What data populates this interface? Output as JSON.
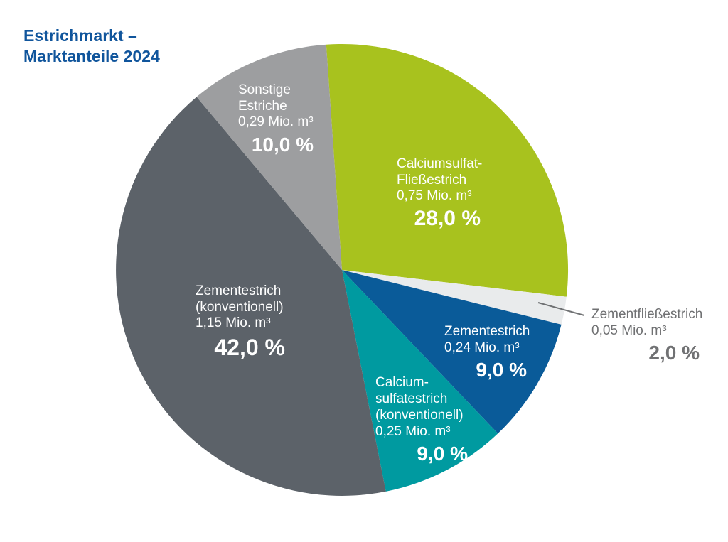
{
  "page": {
    "title_line1": "Estrichmarkt –",
    "title_line2": "Marktanteile 2024",
    "title_color": "#10559c",
    "background": "#ffffff"
  },
  "chart_data": {
    "type": "pie",
    "title": "Estrichmarkt – Marktanteile 2024",
    "unit": "Mio. m³",
    "total_percent": 100,
    "start_angle_deg_from_north": -4,
    "clockwise": true,
    "legend_position": "labels-on-slices",
    "slices": [
      {
        "id": "calciumsulfat-fliessestrich",
        "label": "Calciumsulfat-Fließestrich",
        "label_lines": [
          "Calciumsulfat-",
          "Fließestrich"
        ],
        "volume": "0,75 Mio. m³",
        "volume_value": 0.75,
        "percent": 28.0,
        "percent_label": "28,0 %",
        "color": "#a8c21e",
        "text_color": "#ffffff"
      },
      {
        "id": "zementfliessestrich",
        "label": "Zementfließestrich",
        "label_lines": [
          "Zementfließestrich"
        ],
        "volume": "0,05 Mio. m³",
        "volume_value": 0.05,
        "percent": 2.0,
        "percent_label": "2,0 %",
        "color": "#e9ebec",
        "text_color": "#707173",
        "label_outside": true,
        "leader_line": true
      },
      {
        "id": "zementestrich",
        "label": "Zementestrich",
        "label_lines": [
          "Zementestrich"
        ],
        "volume": "0,24 Mio. m³",
        "volume_value": 0.24,
        "percent": 9.0,
        "percent_label": "9,0 %",
        "color": "#0a5b99",
        "text_color": "#ffffff"
      },
      {
        "id": "calciumsulfatestrich-konventionell",
        "label": "Calcium­sulfatestrich (konventionell)",
        "label_lines": [
          "Calcium-",
          "sulfatestrich",
          "(konventionell)"
        ],
        "volume": "0,25 Mio. m³",
        "volume_value": 0.25,
        "percent": 9.0,
        "percent_label": "9,0 %",
        "color": "#009aa0",
        "text_color": "#ffffff"
      },
      {
        "id": "zementestrich-konventionell",
        "label": "Zementestrich (konventionell)",
        "label_lines": [
          "Zementestrich",
          "(konventionell)"
        ],
        "volume": "1,15 Mio. m³",
        "volume_value": 1.15,
        "percent": 42.0,
        "percent_label": "42,0 %",
        "color": "#5c6269",
        "text_color": "#ffffff"
      },
      {
        "id": "sonstige-estriche",
        "label": "Sonstige Estriche",
        "label_lines": [
          "Sonstige",
          "Estriche"
        ],
        "volume": "0,29 Mio. m³",
        "volume_value": 0.29,
        "percent": 10.0,
        "percent_label": "10,0 %",
        "color": "#9d9ea0",
        "text_color": "#ffffff"
      }
    ]
  }
}
